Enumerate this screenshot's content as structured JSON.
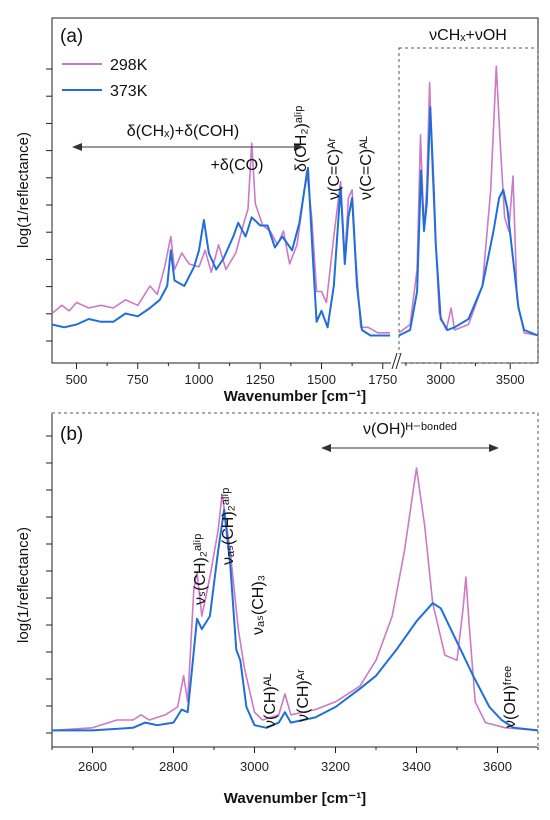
{
  "chart_data": [
    {
      "type": "line",
      "panel_label": "(a)",
      "xlabel": "Wavenumber [cm⁻¹]",
      "ylabel": "log(1/reflectance)",
      "legend": [
        "298K",
        "373K"
      ],
      "x_break": [
        1800,
        2700
      ],
      "x_ticks": [
        "500",
        "750",
        "1000",
        "1250",
        "1500",
        "1750",
        "3000",
        "3500"
      ],
      "inset_label": "νCHₓ+νOH",
      "annotations": [
        "δ(CHₓ)+δ(COH)",
        "+δ(CO)",
        "δ(CH₂)ᵃˡⁱᵖ",
        "ν(C=C)ᴬʳ",
        "ν(C=C)ᴬᴸ"
      ],
      "series": [
        {
          "name": "298K",
          "color": "#cc79c8",
          "points": [
            [
              400,
              0.1
            ],
            [
              440,
              0.13
            ],
            [
              470,
              0.11
            ],
            [
              500,
              0.14
            ],
            [
              550,
              0.12
            ],
            [
              600,
              0.13
            ],
            [
              650,
              0.12
            ],
            [
              700,
              0.15
            ],
            [
              750,
              0.13
            ],
            [
              800,
              0.2
            ],
            [
              830,
              0.17
            ],
            [
              860,
              0.27
            ],
            [
              885,
              0.38
            ],
            [
              900,
              0.26
            ],
            [
              930,
              0.32
            ],
            [
              960,
              0.28
            ],
            [
              1000,
              0.27
            ],
            [
              1025,
              0.33
            ],
            [
              1050,
              0.25
            ],
            [
              1080,
              0.35
            ],
            [
              1110,
              0.26
            ],
            [
              1150,
              0.32
            ],
            [
              1180,
              0.42
            ],
            [
              1200,
              0.48
            ],
            [
              1215,
              0.72
            ],
            [
              1230,
              0.5
            ],
            [
              1260,
              0.42
            ],
            [
              1290,
              0.4
            ],
            [
              1320,
              0.35
            ],
            [
              1345,
              0.4
            ],
            [
              1370,
              0.28
            ],
            [
              1400,
              0.35
            ],
            [
              1420,
              0.48
            ],
            [
              1440,
              0.62
            ],
            [
              1460,
              0.45
            ],
            [
              1480,
              0.18
            ],
            [
              1500,
              0.18
            ],
            [
              1520,
              0.14
            ],
            [
              1550,
              0.38
            ],
            [
              1578,
              0.58
            ],
            [
              1595,
              0.3
            ],
            [
              1610,
              0.52
            ],
            [
              1625,
              0.55
            ],
            [
              1640,
              0.3
            ],
            [
              1660,
              0.05
            ],
            [
              1690,
              0.05
            ],
            [
              1730,
              0.03
            ],
            [
              1780,
              0.03
            ],
            [
              2700,
              0.03
            ],
            [
              2780,
              0.06
            ],
            [
              2830,
              0.26
            ],
            [
              2855,
              0.75
            ],
            [
              2880,
              0.4
            ],
            [
              2900,
              0.56
            ],
            [
              2920,
              0.94
            ],
            [
              2940,
              0.62
            ],
            [
              2960,
              0.4
            ],
            [
              2990,
              0.1
            ],
            [
              3040,
              0.04
            ],
            [
              3075,
              0.12
            ],
            [
              3100,
              0.04
            ],
            [
              3200,
              0.06
            ],
            [
              3300,
              0.2
            ],
            [
              3360,
              0.55
            ],
            [
              3400,
              1.0
            ],
            [
              3430,
              0.7
            ],
            [
              3460,
              0.45
            ],
            [
              3490,
              0.4
            ],
            [
              3520,
              0.6
            ],
            [
              3550,
              0.15
            ],
            [
              3600,
              0.03
            ],
            [
              3700,
              0.02
            ]
          ]
        },
        {
          "name": "373K",
          "color": "#1f6fd8",
          "points": [
            [
              400,
              0.06
            ],
            [
              450,
              0.05
            ],
            [
              500,
              0.06
            ],
            [
              550,
              0.08
            ],
            [
              600,
              0.07
            ],
            [
              650,
              0.07
            ],
            [
              700,
              0.1
            ],
            [
              750,
              0.09
            ],
            [
              800,
              0.12
            ],
            [
              840,
              0.15
            ],
            [
              870,
              0.2
            ],
            [
              885,
              0.33
            ],
            [
              900,
              0.22
            ],
            [
              940,
              0.2
            ],
            [
              980,
              0.27
            ],
            [
              1000,
              0.33
            ],
            [
              1020,
              0.44
            ],
            [
              1040,
              0.32
            ],
            [
              1070,
              0.26
            ],
            [
              1100,
              0.3
            ],
            [
              1140,
              0.38
            ],
            [
              1160,
              0.43
            ],
            [
              1190,
              0.38
            ],
            [
              1215,
              0.45
            ],
            [
              1250,
              0.42
            ],
            [
              1280,
              0.42
            ],
            [
              1310,
              0.34
            ],
            [
              1340,
              0.38
            ],
            [
              1380,
              0.33
            ],
            [
              1410,
              0.43
            ],
            [
              1430,
              0.55
            ],
            [
              1445,
              0.63
            ],
            [
              1465,
              0.3
            ],
            [
              1480,
              0.07
            ],
            [
              1500,
              0.11
            ],
            [
              1525,
              0.05
            ],
            [
              1550,
              0.2
            ],
            [
              1578,
              0.56
            ],
            [
              1595,
              0.28
            ],
            [
              1610,
              0.45
            ],
            [
              1625,
              0.52
            ],
            [
              1645,
              0.2
            ],
            [
              1665,
              0.04
            ],
            [
              1700,
              0.02
            ],
            [
              1780,
              0.02
            ],
            [
              2700,
              0.02
            ],
            [
              2780,
              0.04
            ],
            [
              2830,
              0.18
            ],
            [
              2858,
              0.62
            ],
            [
              2880,
              0.4
            ],
            [
              2900,
              0.5
            ],
            [
              2925,
              0.85
            ],
            [
              2950,
              0.55
            ],
            [
              2965,
              0.35
            ],
            [
              3000,
              0.08
            ],
            [
              3050,
              0.04
            ],
            [
              3100,
              0.05
            ],
            [
              3200,
              0.08
            ],
            [
              3300,
              0.2
            ],
            [
              3380,
              0.4
            ],
            [
              3420,
              0.52
            ],
            [
              3450,
              0.55
            ],
            [
              3480,
              0.48
            ],
            [
              3520,
              0.3
            ],
            [
              3560,
              0.12
            ],
            [
              3600,
              0.04
            ],
            [
              3700,
              0.02
            ]
          ]
        }
      ]
    },
    {
      "type": "line",
      "panel_label": "(b)",
      "xlabel": "Wavenumber [cm⁻¹]",
      "ylabel": "log(1/reflectance)",
      "xlim": [
        2500,
        3700
      ],
      "x_ticks": [
        "2600",
        "2800",
        "3000",
        "3200",
        "3400",
        "3600"
      ],
      "annotations": [
        "ν(OH)ᴴ⁻ᵇᵒⁿᵈᵉᵈ",
        "νₛ(CH)₂ᵃˡⁱᵖ",
        "νₐₛ(CH)₂ᵃˡⁱᵖ",
        "νₐₛ(CH)₃",
        "ν(CH)ᴬᴸ",
        "ν(CH)ᴬʳ",
        "ν(OH)ᶠʳᵉᵉ"
      ],
      "series": [
        {
          "name": "298K",
          "color": "#cc79c8",
          "points": [
            [
              2500,
              0.01
            ],
            [
              2600,
              0.02
            ],
            [
              2660,
              0.05
            ],
            [
              2700,
              0.05
            ],
            [
              2720,
              0.07
            ],
            [
              2740,
              0.05
            ],
            [
              2780,
              0.07
            ],
            [
              2810,
              0.1
            ],
            [
              2825,
              0.22
            ],
            [
              2835,
              0.12
            ],
            [
              2850,
              0.55
            ],
            [
              2858,
              0.62
            ],
            [
              2870,
              0.45
            ],
            [
              2890,
              0.6
            ],
            [
              2910,
              0.78
            ],
            [
              2920,
              0.92
            ],
            [
              2940,
              0.7
            ],
            [
              2960,
              0.4
            ],
            [
              2975,
              0.25
            ],
            [
              3000,
              0.08
            ],
            [
              3020,
              0.05
            ],
            [
              3040,
              0.06
            ],
            [
              3060,
              0.07
            ],
            [
              3075,
              0.15
            ],
            [
              3090,
              0.07
            ],
            [
              3150,
              0.09
            ],
            [
              3200,
              0.12
            ],
            [
              3260,
              0.18
            ],
            [
              3300,
              0.28
            ],
            [
              3340,
              0.45
            ],
            [
              3370,
              0.7
            ],
            [
              3400,
              1.02
            ],
            [
              3420,
              0.8
            ],
            [
              3440,
              0.5
            ],
            [
              3470,
              0.3
            ],
            [
              3500,
              0.28
            ],
            [
              3515,
              0.48
            ],
            [
              3522,
              0.6
            ],
            [
              3530,
              0.42
            ],
            [
              3545,
              0.12
            ],
            [
              3570,
              0.04
            ],
            [
              3620,
              0.02
            ],
            [
              3700,
              0.01
            ]
          ]
        },
        {
          "name": "373K",
          "color": "#1f6fd8",
          "points": [
            [
              2500,
              0.01
            ],
            [
              2600,
              0.01
            ],
            [
              2700,
              0.02
            ],
            [
              2730,
              0.04
            ],
            [
              2760,
              0.03
            ],
            [
              2800,
              0.04
            ],
            [
              2820,
              0.09
            ],
            [
              2835,
              0.08
            ],
            [
              2848,
              0.28
            ],
            [
              2858,
              0.44
            ],
            [
              2870,
              0.4
            ],
            [
              2890,
              0.45
            ],
            [
              2910,
              0.7
            ],
            [
              2925,
              0.86
            ],
            [
              2940,
              0.65
            ],
            [
              2955,
              0.32
            ],
            [
              2965,
              0.28
            ],
            [
              2980,
              0.1
            ],
            [
              3000,
              0.03
            ],
            [
              3030,
              0.02
            ],
            [
              3060,
              0.04
            ],
            [
              3075,
              0.08
            ],
            [
              3090,
              0.04
            ],
            [
              3150,
              0.06
            ],
            [
              3200,
              0.1
            ],
            [
              3260,
              0.17
            ],
            [
              3300,
              0.22
            ],
            [
              3350,
              0.32
            ],
            [
              3400,
              0.43
            ],
            [
              3440,
              0.5
            ],
            [
              3460,
              0.48
            ],
            [
              3500,
              0.35
            ],
            [
              3540,
              0.22
            ],
            [
              3580,
              0.1
            ],
            [
              3610,
              0.05
            ],
            [
              3640,
              0.02
            ],
            [
              3700,
              0.01
            ]
          ]
        }
      ]
    }
  ]
}
